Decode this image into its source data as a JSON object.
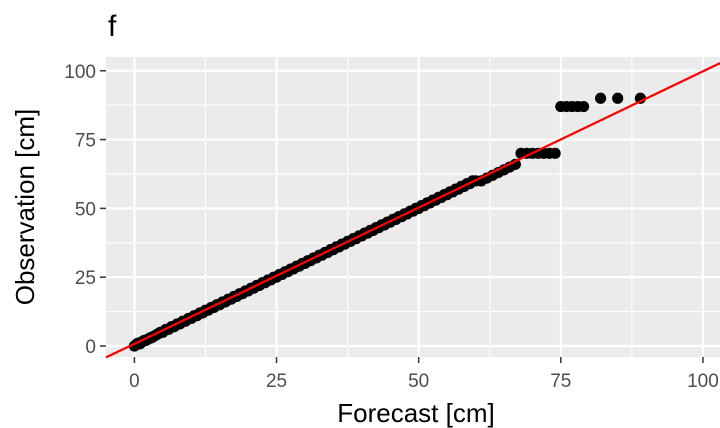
{
  "chart_data": {
    "type": "scatter",
    "panel_label": "f",
    "title": "",
    "xlabel": "Forecast [cm]",
    "ylabel": "Observation [cm]",
    "xlim": [
      -5,
      103
    ],
    "ylim": [
      -4,
      105
    ],
    "x_ticks": [
      0,
      25,
      50,
      75,
      100
    ],
    "y_ticks": [
      0,
      25,
      50,
      75,
      100
    ],
    "x_tick_labels": [
      "0",
      "25",
      "50",
      "75",
      "100"
    ],
    "y_tick_labels": [
      "0",
      "25",
      "50",
      "75",
      "100"
    ],
    "grid": true,
    "legend": "none",
    "panel_background": "#ebebeb",
    "grid_color": "#ffffff",
    "point_color": "#000000",
    "reference_line": {
      "type": "linear-fit",
      "color": "#ff0000",
      "slope": 0.99,
      "intercept": 0.8
    },
    "series": [
      {
        "points": [
          [
            0,
            0
          ],
          [
            0.3,
            0.5
          ],
          [
            0.6,
            1
          ],
          [
            1,
            0.8
          ],
          [
            1.3,
            1.5
          ],
          [
            1.7,
            2
          ],
          [
            2,
            2
          ],
          [
            2.4,
            2.5
          ],
          [
            2.8,
            3
          ],
          [
            3,
            3
          ],
          [
            3.4,
            3.5
          ],
          [
            3.8,
            4
          ],
          [
            4.2,
            4.5
          ],
          [
            4.6,
            5
          ],
          [
            5,
            5
          ],
          [
            5.5,
            6
          ],
          [
            6,
            6
          ],
          [
            6.5,
            7
          ],
          [
            7,
            7
          ],
          [
            7.5,
            8
          ],
          [
            8,
            8
          ],
          [
            8.5,
            9
          ],
          [
            9,
            9
          ],
          [
            9.5,
            10
          ],
          [
            10,
            10
          ],
          [
            10.5,
            11
          ],
          [
            11,
            11
          ],
          [
            11.5,
            12
          ],
          [
            12,
            12
          ],
          [
            12.5,
            13
          ],
          [
            13,
            13
          ],
          [
            13.5,
            14
          ],
          [
            14,
            14
          ],
          [
            14.5,
            15
          ],
          [
            15,
            15
          ],
          [
            15.5,
            16
          ],
          [
            16,
            16
          ],
          [
            16.5,
            17
          ],
          [
            17,
            17
          ],
          [
            17.5,
            18
          ],
          [
            18,
            18
          ],
          [
            18.5,
            19
          ],
          [
            19,
            19
          ],
          [
            19.5,
            20
          ],
          [
            20,
            20
          ],
          [
            20.5,
            21
          ],
          [
            21,
            21
          ],
          [
            21.5,
            22
          ],
          [
            22,
            22
          ],
          [
            22.5,
            23
          ],
          [
            23,
            23
          ],
          [
            23.5,
            24
          ],
          [
            24,
            24
          ],
          [
            24.5,
            25
          ],
          [
            25,
            25
          ],
          [
            25.5,
            26
          ],
          [
            26,
            26
          ],
          [
            26.5,
            27
          ],
          [
            27,
            27
          ],
          [
            27.5,
            28
          ],
          [
            28,
            28
          ],
          [
            28.5,
            29
          ],
          [
            29,
            29
          ],
          [
            29.5,
            30
          ],
          [
            30,
            30
          ],
          [
            30.5,
            31
          ],
          [
            31,
            31
          ],
          [
            31.5,
            32
          ],
          [
            32,
            32
          ],
          [
            32.5,
            33
          ],
          [
            33,
            33
          ],
          [
            33.5,
            34
          ],
          [
            34,
            34
          ],
          [
            34.5,
            35
          ],
          [
            35,
            35
          ],
          [
            35.5,
            36
          ],
          [
            36,
            36
          ],
          [
            36.5,
            37
          ],
          [
            37,
            37
          ],
          [
            37.5,
            38
          ],
          [
            38,
            38
          ],
          [
            38.5,
            39
          ],
          [
            39,
            39
          ],
          [
            39.5,
            40
          ],
          [
            40,
            40
          ],
          [
            40.5,
            41
          ],
          [
            41,
            41
          ],
          [
            41.5,
            42
          ],
          [
            42,
            42
          ],
          [
            42.5,
            43
          ],
          [
            43,
            43
          ],
          [
            43.5,
            44
          ],
          [
            44,
            44
          ],
          [
            44.5,
            45
          ],
          [
            45,
            45
          ],
          [
            45.5,
            46
          ],
          [
            46,
            46
          ],
          [
            46.5,
            47
          ],
          [
            47,
            47
          ],
          [
            47.5,
            48
          ],
          [
            48,
            48
          ],
          [
            48.5,
            49
          ],
          [
            49,
            49
          ],
          [
            49.5,
            50
          ],
          [
            50,
            50
          ],
          [
            50.5,
            51
          ],
          [
            51,
            51
          ],
          [
            51.5,
            52
          ],
          [
            52,
            52
          ],
          [
            52.5,
            53
          ],
          [
            53,
            53
          ],
          [
            53.5,
            54
          ],
          [
            54,
            54
          ],
          [
            54.5,
            55
          ],
          [
            55,
            55
          ],
          [
            55.5,
            56
          ],
          [
            56,
            56
          ],
          [
            56.5,
            57
          ],
          [
            57,
            57
          ],
          [
            57.5,
            58
          ],
          [
            58,
            58
          ],
          [
            58.5,
            59
          ],
          [
            59,
            59
          ],
          [
            59.5,
            60
          ],
          [
            60,
            60
          ],
          [
            61,
            60
          ],
          [
            62,
            61
          ],
          [
            63,
            62
          ],
          [
            64,
            63
          ],
          [
            65,
            64
          ],
          [
            66,
            65
          ],
          [
            67,
            66
          ],
          [
            68,
            70
          ],
          [
            69,
            70
          ],
          [
            70,
            70
          ],
          [
            71,
            70
          ],
          [
            72,
            70
          ],
          [
            73,
            70
          ],
          [
            74,
            70
          ],
          [
            75,
            87
          ],
          [
            76,
            87
          ],
          [
            77,
            87
          ],
          [
            78,
            87
          ],
          [
            79,
            87
          ],
          [
            82,
            90
          ],
          [
            85,
            90
          ],
          [
            89,
            90
          ]
        ]
      }
    ]
  }
}
